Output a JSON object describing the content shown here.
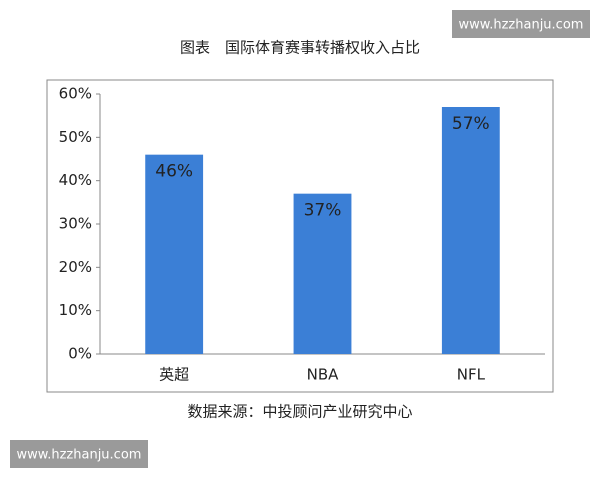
{
  "chart_data": {
    "type": "bar",
    "title": "图表　国际体育赛事转播权收入占比",
    "categories": [
      "英超",
      "NBA",
      "NFL"
    ],
    "values": [
      46,
      37,
      57
    ],
    "value_labels": [
      "46%",
      "37%",
      "57%"
    ],
    "color": "#3b7fd6",
    "ylim": [
      0,
      60
    ],
    "yticks": [
      {
        "value": 0,
        "label": "0%"
      },
      {
        "value": 10,
        "label": "10%"
      },
      {
        "value": 20,
        "label": "20%"
      },
      {
        "value": 30,
        "label": "30%"
      },
      {
        "value": 40,
        "label": "40%"
      },
      {
        "value": 50,
        "label": "50%"
      },
      {
        "value": 60,
        "label": "60%"
      }
    ],
    "grid": false,
    "source": "数据来源：中投顾问产业研究中心"
  },
  "watermarks": [
    "www.hzzhanju.com",
    "www.hzzhanju.com"
  ]
}
